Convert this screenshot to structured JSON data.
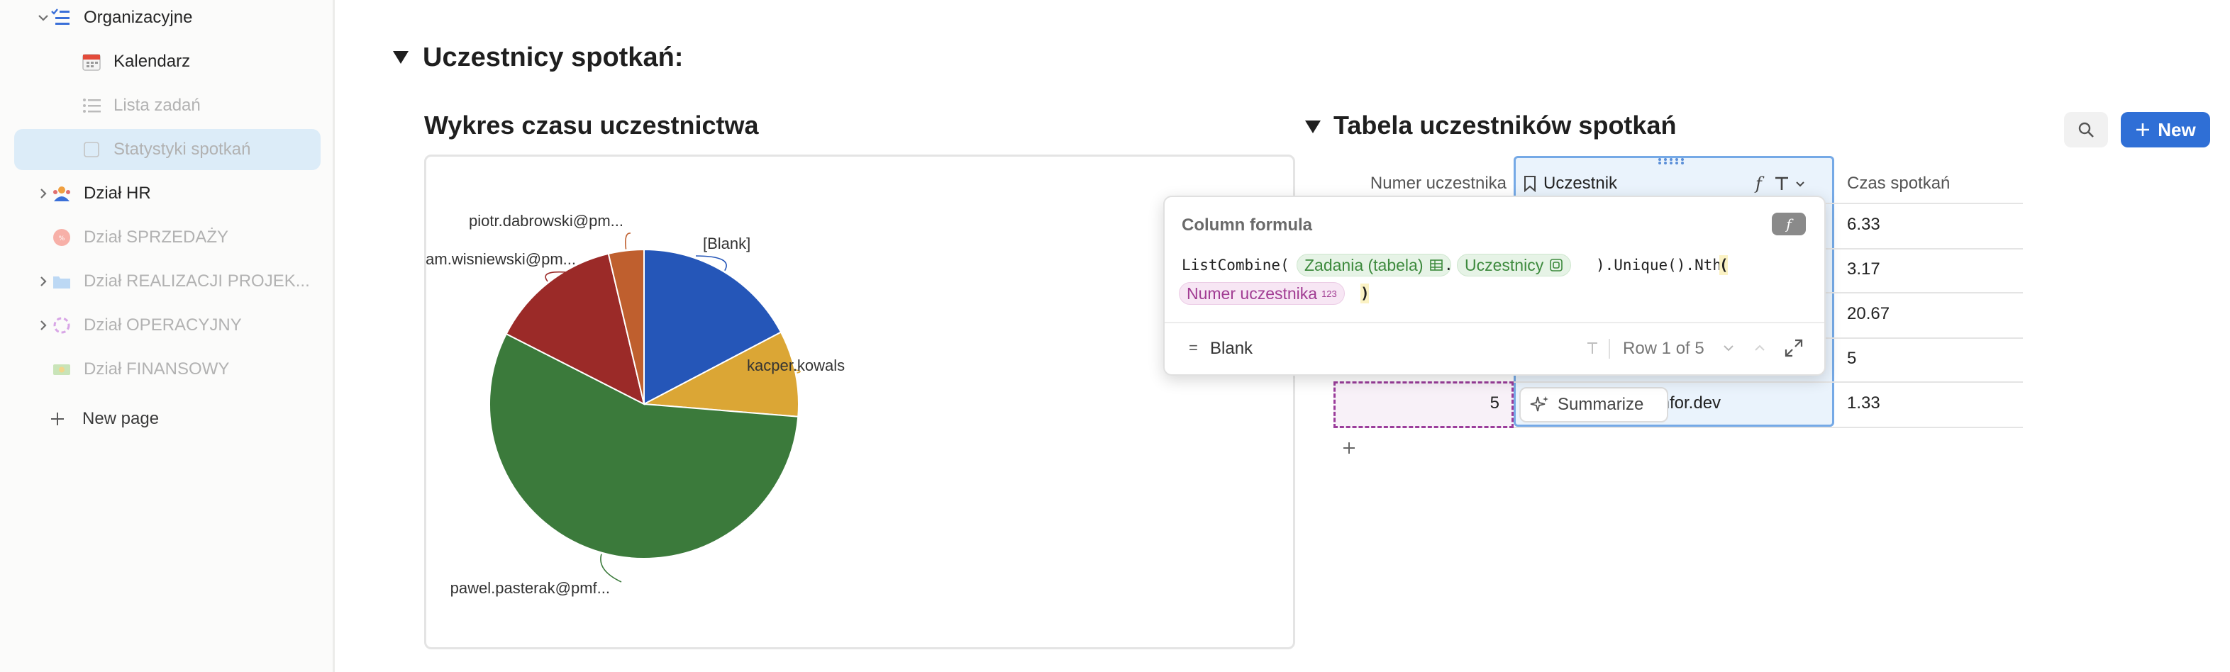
{
  "sidebar": {
    "items": [
      {
        "label": "Organizacyjne"
      },
      {
        "label": "Kalendarz"
      },
      {
        "label": "Lista zadań"
      },
      {
        "label": "Statystyki spotkań"
      },
      {
        "label": "Dział HR"
      },
      {
        "label": "Dział SPRZEDAŻY"
      },
      {
        "label": "Dział REALIZACJI PROJEK..."
      },
      {
        "label": "Dział OPERACYJNY"
      },
      {
        "label": "Dział FINANSOWY"
      }
    ],
    "new_page": "New page"
  },
  "section": {
    "title": "Uczestnicy spotkań:"
  },
  "chart_block": {
    "title": "Wykres czasu uczestnictwa"
  },
  "table_block": {
    "title": "Tabela uczestników spotkań",
    "new_label": "New",
    "columns": [
      "Numer uczestnika",
      "Uczestnik",
      "Czas spotkań"
    ],
    "rows": [
      {
        "czas": "6.33"
      },
      {
        "czas": "3.17"
      },
      {
        "czas": "20.67"
      },
      {
        "czas": "5"
      },
      {
        "numer": "5",
        "uczestnik_partial": "mfor.dev",
        "czas": "1.33"
      }
    ]
  },
  "formula_popup": {
    "title": "Column formula",
    "badge": "f",
    "code_1": "ListCombine(",
    "chip_1": "Zadania (tabela)",
    "dot": ".",
    "chip_2": "Uczestnicy",
    "code_2": ").Unique().Nth",
    "open_paren": "(",
    "chip_3": "Numer uczestnika",
    "chip_3_sub": "123",
    "close_paren": ")",
    "result_prefix": "=",
    "result": "Blank",
    "row_label": "Row 1 of 5"
  },
  "summarize_label": "Summarize",
  "chart_data": {
    "type": "pie",
    "slices": [
      {
        "label": "[Blank]",
        "value": 17.3,
        "color": "#2556b8"
      },
      {
        "label": "kacper.kowals",
        "value": 9.0,
        "color": "#dba635"
      },
      {
        "label": "pawel.pasterak@pmf...",
        "value": 56.2,
        "color": "#3b7a3b"
      },
      {
        "label": "adam.wisniewski@pm...",
        "value": 13.8,
        "color": "#9b2a28"
      },
      {
        "label": "piotr.dabrowski@pm...",
        "value": 3.7,
        "color": "#bf5f2e"
      }
    ]
  }
}
